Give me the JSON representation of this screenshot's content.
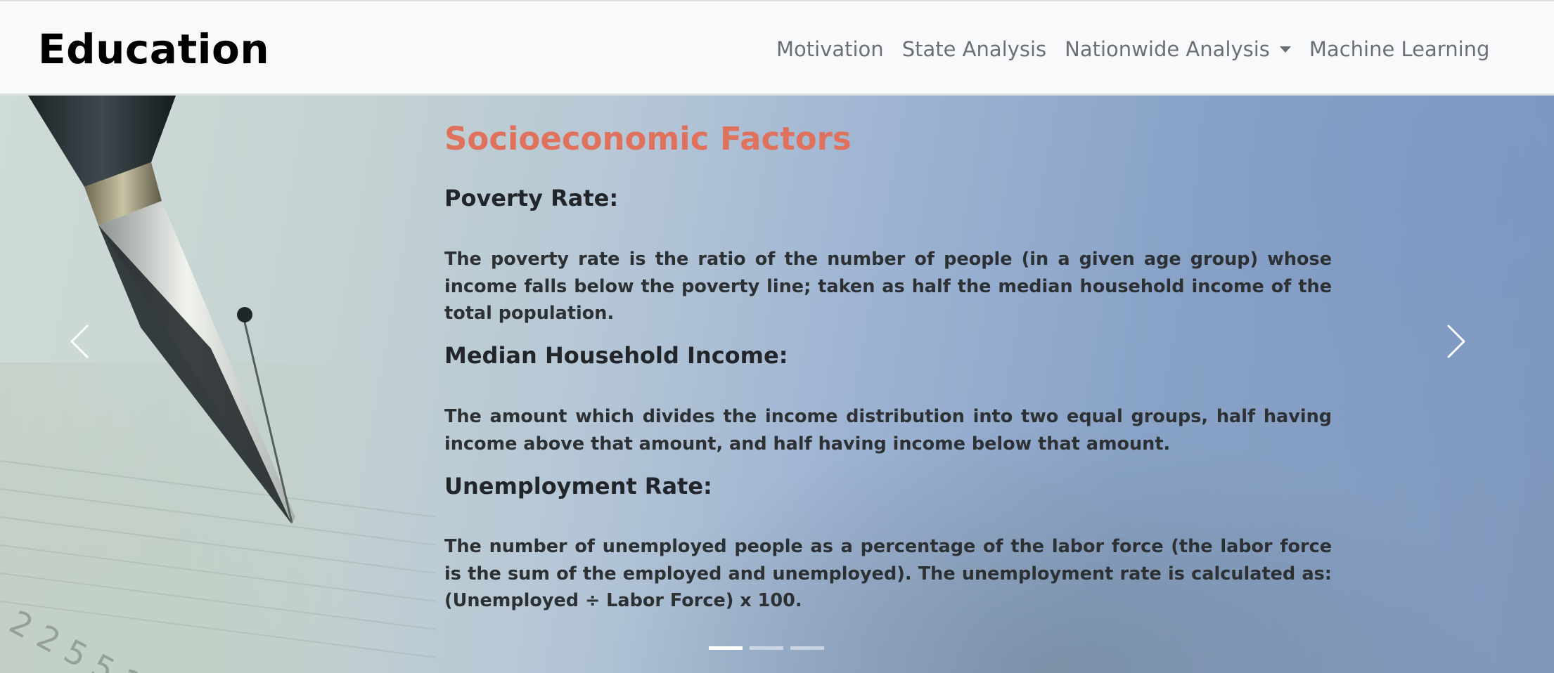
{
  "navbar": {
    "brand": "Education",
    "links": [
      {
        "label": "Motivation"
      },
      {
        "label": "State Analysis"
      },
      {
        "label": "Nationwide Analysis",
        "has_dropdown": true
      },
      {
        "label": "Machine Learning"
      }
    ]
  },
  "carousel": {
    "slide_title": "Socioeconomic Factors",
    "sections": [
      {
        "term": "Poverty Rate:",
        "description": "The poverty rate is the ratio of the number of people (in a given age group) whose income falls below the poverty line; taken as half the median household income of the total population."
      },
      {
        "term": "Median Household Income:",
        "description": "The amount which divides the income distribution into two equal groups, half having income above that amount, and half having income below that amount."
      },
      {
        "term": "Unemployment Rate:",
        "description": "The number of unemployed people as a percentage of the labor force (the labor force is the sum of the employed and unemployed). The unemployment rate is calculated as: (Unemployed ÷ Labor Force) x 100."
      }
    ],
    "controls": {
      "prev_icon": "chevron-left-icon",
      "next_icon": "chevron-right-icon"
    },
    "indicators": {
      "count": 3,
      "active_index": 0
    }
  },
  "colors": {
    "title_accent": "#e0725d",
    "navbar_bg": "#f8f9fa",
    "nav_link": "#6c6f73",
    "body_text": "#2d3134"
  }
}
